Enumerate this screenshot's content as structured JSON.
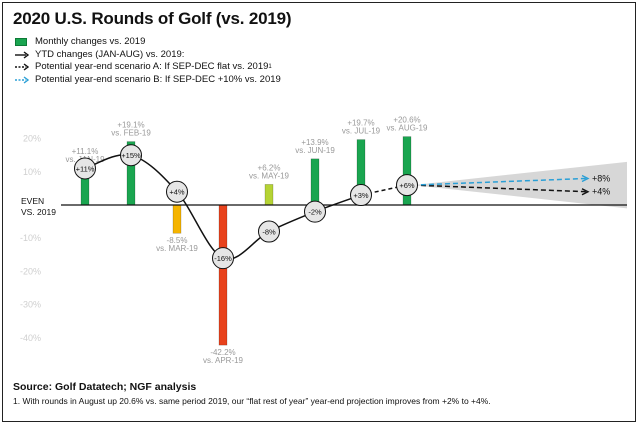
{
  "chart_data": {
    "type": "bar",
    "title": "2020 U.S. Rounds of Golf (vs. 2019)",
    "legend": [
      {
        "label": "Monthly changes vs. 2019",
        "symbol": "green-bar"
      },
      {
        "label": "YTD changes (JAN-AUG) vs. 2019:",
        "symbol": "solid-arrow"
      },
      {
        "label": "Potential year-end scenario A: If SEP-DEC flat vs. 2019",
        "sup": "1",
        "symbol": "black-dashed-arrow"
      },
      {
        "label": "Potential year-end scenario B: If SEP-DEC +10% vs. 2019",
        "symbol": "blue-dashed-arrow"
      }
    ],
    "categories": [
      "JAN-19",
      "FEB-19",
      "MAR-19",
      "APR-19",
      "MAY-19",
      "JUN-19",
      "JUL-19",
      "AUG-19"
    ],
    "series": [
      {
        "values": [
          11.1,
          19.1,
          -8.5,
          -42.2,
          6.2,
          13.9,
          19.7,
          20.6
        ],
        "labels": [
          "+11.1%",
          "+19.1%",
          "-8.5%",
          "-42.2%",
          "+6.2%",
          "+13.9%",
          "+19.7%",
          "+20.6%"
        ],
        "sublabels": [
          "vs. JAN-19",
          "vs. FEB-19",
          "vs. MAR-19",
          "vs. APR-19",
          "vs. MAY-19",
          "vs. JUN-19",
          "vs. JUL-19",
          "vs. AUG-19"
        ],
        "colors": [
          "#1aa550",
          "#1aa550",
          "#f5b400",
          "#e8421c",
          "#b5d334",
          "#1aa550",
          "#1aa550",
          "#1aa550"
        ]
      }
    ],
    "ytd": {
      "values": [
        11,
        15,
        4,
        -16,
        -8,
        -2,
        3,
        6
      ],
      "labels": [
        "+11%",
        "+15%",
        "+4%",
        "-16%",
        "-8%",
        "-2%",
        "+3%",
        "+6%"
      ]
    },
    "scenarios": [
      {
        "value": 4,
        "label": "+4%",
        "color": "#111111"
      },
      {
        "value": 8,
        "label": "+8%",
        "color": "#2a9fd6"
      }
    ],
    "yticks": [
      20,
      10,
      -10,
      -20,
      -30,
      -40
    ],
    "ytick_labels": [
      "20%",
      "10%",
      "-10%",
      "-20%",
      "-30%",
      "-40%"
    ],
    "baseline_label": [
      "EVEN",
      "VS. 2019"
    ],
    "ylim": [
      -42.2,
      20.6
    ],
    "grid": false
  },
  "source": "Source: Golf Datatech; NGF analysis",
  "footnote": "1. With rounds in August up 20.6% vs. same period 2019, our “flat rest of year” year-end projection improves from +2% to +4%."
}
